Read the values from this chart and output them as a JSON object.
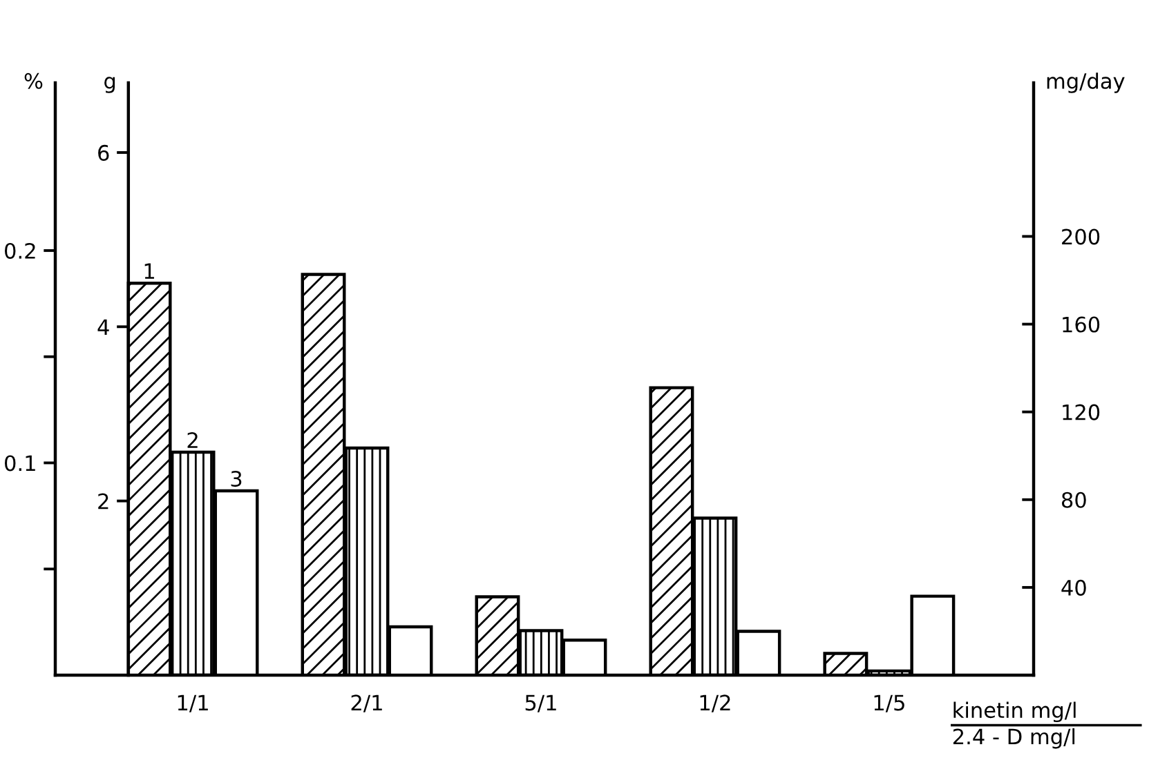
{
  "chart_data": {
    "type": "bar",
    "categories": [
      "1/1",
      "2/1",
      "5/1",
      "1/2",
      "1/5"
    ],
    "series": [
      {
        "name": "1",
        "color": "#000000",
        "axis": "y",
        "values": [
          4.5,
          4.6,
          0.9,
          3.3,
          0.25
        ]
      },
      {
        "name": "2",
        "color": "#000000",
        "axis": "y3",
        "values": [
          0.105,
          0.107,
          0.021,
          0.074,
          0.002
        ]
      },
      {
        "name": "3",
        "color": "#000000",
        "axis": "y2",
        "values": [
          84,
          22,
          16,
          20,
          36
        ]
      }
    ],
    "ylabel": "g",
    "y2label": "mg/day",
    "y3label": "%",
    "xlabel": "kinetin mg/l\n2.4 - D mg/l",
    "ylim": [
      0,
      6.8
    ],
    "yticks": [
      2,
      4,
      6
    ],
    "y2lim": [
      0,
      270
    ],
    "y2ticks": [
      40,
      80,
      120,
      160,
      200
    ],
    "y3lim": [
      0,
      0.279
    ],
    "y3ticks": [
      {
        "value": 0.05,
        "label": null
      },
      {
        "value": 0.1,
        "label": "0.1"
      },
      {
        "value": 0.15,
        "label": null
      },
      {
        "value": 0.2,
        "label": "0.2"
      }
    ],
    "grid": false,
    "legend": false
  }
}
